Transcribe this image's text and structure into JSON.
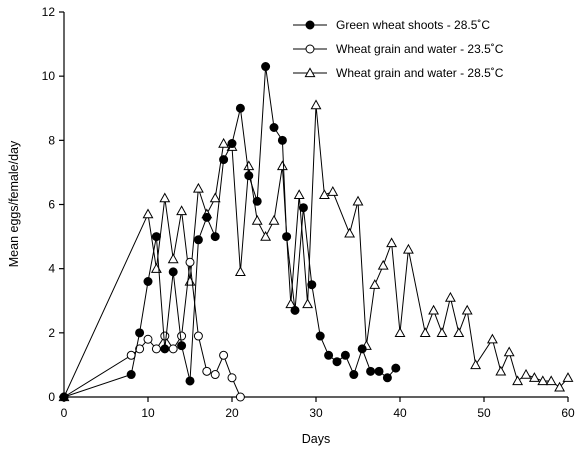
{
  "chart_data": {
    "type": "line",
    "xlabel": "Days",
    "ylabel": "Mean eggs/female/day",
    "xlim": [
      0,
      60
    ],
    "ylim": [
      0,
      12
    ],
    "xticks": [
      "0",
      "10",
      "20",
      "30",
      "40",
      "50",
      "60"
    ],
    "yticks": [
      "0",
      "2",
      "4",
      "6",
      "8",
      "10",
      "12"
    ],
    "grid": false,
    "legend_position": "top-right",
    "series": [
      {
        "name": "Green wheat shoots - 28.5˚C",
        "marker": "filled-circle",
        "points": [
          [
            0,
            0
          ],
          [
            8,
            0.7
          ],
          [
            9,
            2.0
          ],
          [
            10,
            3.6
          ],
          [
            11,
            5.0
          ],
          [
            12,
            1.5
          ],
          [
            13,
            3.9
          ],
          [
            14,
            1.6
          ],
          [
            15,
            0.5
          ],
          [
            16,
            4.9
          ],
          [
            17,
            5.6
          ],
          [
            18,
            5.0
          ],
          [
            19,
            7.4
          ],
          [
            20,
            7.9
          ],
          [
            21,
            9.0
          ],
          [
            22,
            6.9
          ],
          [
            23,
            6.1
          ],
          [
            24,
            10.3
          ],
          [
            25,
            8.4
          ],
          [
            26,
            8.0
          ],
          [
            26.5,
            5.0
          ],
          [
            27.5,
            2.7
          ],
          [
            28.5,
            5.9
          ],
          [
            29.5,
            3.5
          ],
          [
            30.5,
            1.9
          ],
          [
            31.5,
            1.3
          ],
          [
            32.5,
            1.1
          ],
          [
            33.5,
            1.3
          ],
          [
            34.5,
            0.7
          ],
          [
            35.5,
            1.5
          ],
          [
            36.5,
            0.8
          ],
          [
            37.5,
            0.8
          ],
          [
            38.5,
            0.6
          ],
          [
            39.5,
            0.9
          ]
        ]
      },
      {
        "name": "Wheat grain and water - 23.5˚C",
        "marker": "open-circle",
        "points": [
          [
            0,
            0
          ],
          [
            8,
            1.3
          ],
          [
            9,
            1.5
          ],
          [
            10,
            1.8
          ],
          [
            11,
            1.5
          ],
          [
            12,
            1.9
          ],
          [
            13,
            1.5
          ],
          [
            14,
            1.9
          ],
          [
            15,
            4.2
          ],
          [
            16,
            1.9
          ],
          [
            17,
            0.8
          ],
          [
            18,
            0.7
          ],
          [
            19,
            1.3
          ],
          [
            20,
            0.6
          ],
          [
            21,
            0.0
          ]
        ]
      },
      {
        "name": "Wheat grain and water - 28.5˚C",
        "marker": "open-triangle",
        "points": [
          [
            0,
            0
          ],
          [
            10,
            5.7
          ],
          [
            11,
            4.0
          ],
          [
            12,
            6.2
          ],
          [
            13,
            4.3
          ],
          [
            14,
            5.8
          ],
          [
            15,
            3.6
          ],
          [
            16,
            6.5
          ],
          [
            17,
            5.7
          ],
          [
            18,
            6.2
          ],
          [
            19,
            7.9
          ],
          [
            20,
            7.8
          ],
          [
            21,
            3.9
          ],
          [
            22,
            7.2
          ],
          [
            23,
            5.5
          ],
          [
            24,
            5.0
          ],
          [
            25,
            5.5
          ],
          [
            26,
            7.2
          ],
          [
            27,
            2.9
          ],
          [
            28,
            6.3
          ],
          [
            29,
            2.9
          ],
          [
            30,
            9.1
          ],
          [
            31,
            6.3
          ],
          [
            32,
            6.4
          ],
          [
            34,
            5.1
          ],
          [
            35,
            6.1
          ],
          [
            36,
            1.6
          ],
          [
            37,
            3.5
          ],
          [
            38,
            4.1
          ],
          [
            39,
            4.8
          ],
          [
            40,
            2.0
          ],
          [
            41,
            4.6
          ],
          [
            43,
            2.0
          ],
          [
            44,
            2.7
          ],
          [
            45,
            2.0
          ],
          [
            46,
            3.1
          ],
          [
            47,
            2.0
          ],
          [
            48,
            2.7
          ],
          [
            49,
            1.0
          ],
          [
            51,
            1.8
          ],
          [
            52,
            0.8
          ],
          [
            53,
            1.4
          ],
          [
            54,
            0.5
          ],
          [
            55,
            0.7
          ],
          [
            56,
            0.6
          ],
          [
            57,
            0.5
          ],
          [
            58,
            0.5
          ],
          [
            59,
            0.3
          ],
          [
            60,
            0.6
          ]
        ]
      }
    ]
  }
}
